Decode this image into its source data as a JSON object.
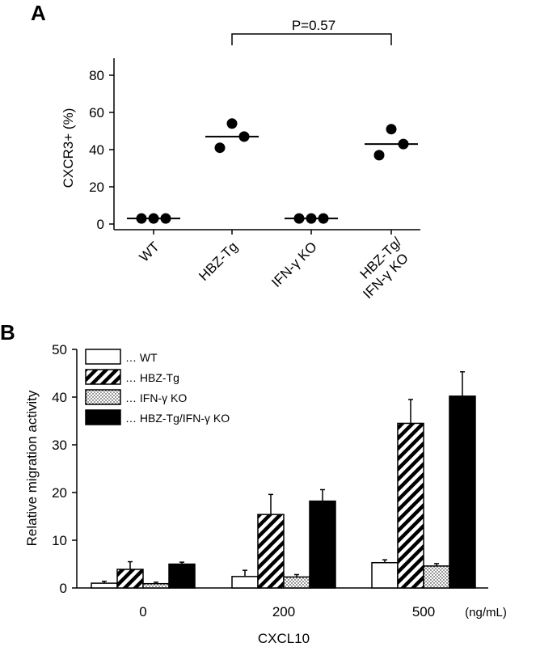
{
  "panel_a": {
    "label": "A",
    "ylabel": "CXCR3+ (%)",
    "p_value": "P=0.57"
  },
  "panel_b": {
    "label": "B",
    "ylabel": "Relative migration activity",
    "xlabel": "CXCL10",
    "unit": "(ng/mL)"
  },
  "chart_data": [
    {
      "type": "scatter",
      "panel": "A",
      "ylabel": "CXCR3+ (%)",
      "ylim": [
        0,
        90
      ],
      "yticks": [
        0,
        20,
        40,
        60,
        80
      ],
      "categories": [
        "WT",
        "HBZ-Tg",
        "IFN-γ KO",
        "HBZ-Tg/\nIFN-γ KO"
      ],
      "points": [
        [
          3,
          3,
          3
        ],
        [
          54,
          41,
          47
        ],
        [
          3,
          3,
          3
        ],
        [
          51,
          37,
          43
        ]
      ],
      "means": [
        3,
        47,
        3,
        43
      ],
      "comparison": {
        "between": [
          "HBZ-Tg",
          "HBZ-Tg/\nIFN-γ KO"
        ],
        "label": "P=0.57"
      },
      "grid": false
    },
    {
      "type": "bar",
      "panel": "B",
      "ylabel": "Relative migration activity",
      "xlabel": "CXCL10",
      "unit": "(ng/mL)",
      "ylim": [
        0,
        50
      ],
      "yticks": [
        0,
        10,
        20,
        30,
        40,
        50
      ],
      "categories": [
        "0",
        "200",
        "500"
      ],
      "series": [
        {
          "name": "… WT",
          "fill": "white",
          "values": [
            1.0,
            2.4,
            5.3
          ],
          "errors": [
            0.4,
            1.3,
            0.6
          ]
        },
        {
          "name": "… HBZ-Tg",
          "fill": "hatch",
          "values": [
            3.9,
            15.4,
            34.5
          ],
          "errors": [
            1.6,
            4.2,
            5.0
          ]
        },
        {
          "name": "… IFN-γ KO",
          "fill": "dots",
          "values": [
            0.9,
            2.3,
            4.6
          ],
          "errors": [
            0.3,
            0.5,
            0.5
          ]
        },
        {
          "name": "… HBZ-Tg/IFN-γ KO",
          "fill": "black",
          "values": [
            5.0,
            18.2,
            40.2
          ],
          "errors": [
            0.4,
            2.4,
            5.1
          ]
        }
      ],
      "legend": "top-left",
      "grid": false
    }
  ]
}
